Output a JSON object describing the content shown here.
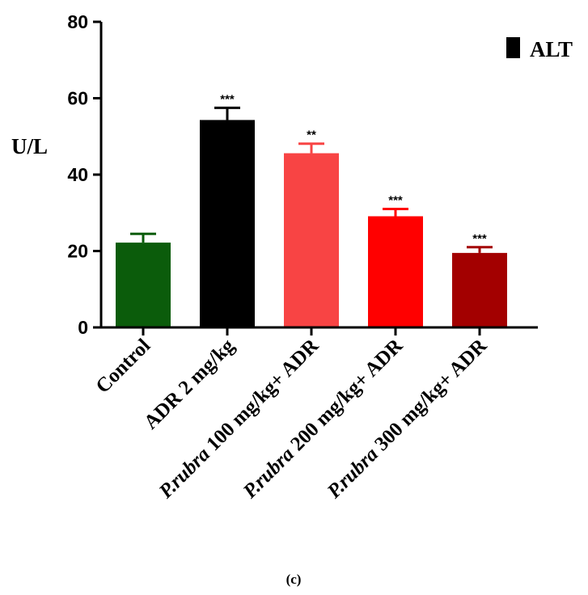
{
  "chart_data": {
    "type": "bar",
    "ylabel": "U/L",
    "ylim": [
      0,
      80
    ],
    "yticks": [
      "0",
      "20",
      "40",
      "60",
      "80"
    ],
    "categories": [
      {
        "italic": "",
        "text": "Control"
      },
      {
        "italic": "",
        "text": "ADR 2 mg/kg"
      },
      {
        "italic": "P.rubra",
        "text": " 100 mg/kg+ ADR"
      },
      {
        "italic": "P.rubra",
        "text": " 200 mg/kg+ ADR"
      },
      {
        "italic": "P.rubra",
        "text": " 300 mg/kg+ ADR"
      }
    ],
    "series": [
      {
        "name": "ALT",
        "values": [
          22.2,
          54.3,
          45.6,
          29.1,
          19.5
        ],
        "errors": [
          2.3,
          3.2,
          2.5,
          1.9,
          1.5
        ],
        "significance": [
          "",
          "***",
          "**",
          "***",
          "***"
        ],
        "colors": [
          "#0b5c0b",
          "#000000",
          "#f84444",
          "#ff0000",
          "#a30000"
        ]
      }
    ],
    "legend": {
      "label": "ALT",
      "position": "top-right",
      "swatch_color": "#000000"
    },
    "grid": false
  },
  "panel_label": "(c)"
}
